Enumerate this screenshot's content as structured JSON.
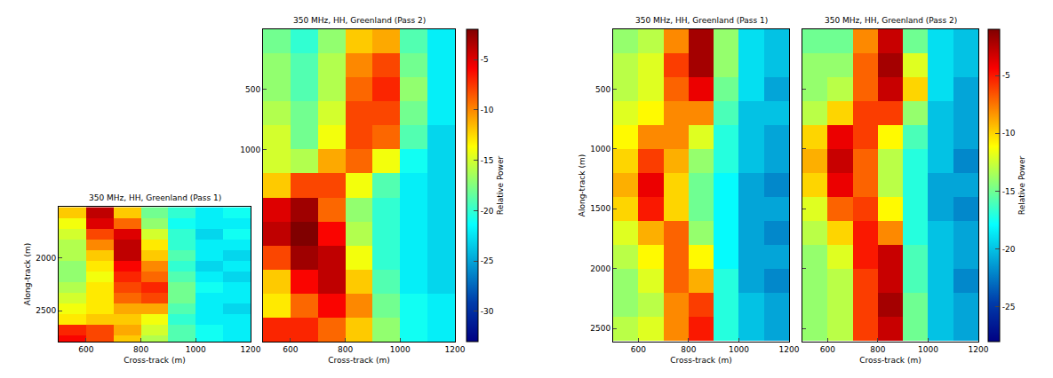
{
  "chart_data": [
    {
      "type": "heatmap",
      "colorbar": {
        "title": "Relative Power",
        "range": [
          -33,
          -2
        ],
        "ticks": [
          -5,
          -10,
          -15,
          -20,
          -25,
          -30
        ]
      },
      "panels": [
        {
          "title": "350 MHz, HH, Greenland (Pass 1)",
          "x_label": "Cross-track (m)",
          "y_label": "Along-track (m)",
          "xlim": [
            500,
            1200
          ],
          "ylim": [
            2790,
            1520
          ],
          "xticks": [
            600,
            800,
            1000,
            1200
          ],
          "yticks": [
            2000,
            2500
          ],
          "x": [
            550,
            650,
            750,
            850,
            950,
            1050,
            1150
          ],
          "y": [
            1575,
            1675,
            1775,
            1875,
            1975,
            2075,
            2175,
            2275,
            2375,
            2475,
            2575,
            2675,
            2775
          ],
          "z": [
            [
              -12,
              -4,
              -12,
              -18,
              -20,
              -22,
              -21
            ],
            [
              -14,
              -5,
              -9,
              -17,
              -21,
              -22,
              -22
            ],
            [
              -15,
              -8,
              -5,
              -15,
              -20,
              -23,
              -21
            ],
            [
              -16,
              -10,
              -4,
              -13,
              -20,
              -22,
              -22
            ],
            [
              -16,
              -12,
              -4,
              -12,
              -19,
              -22,
              -23
            ],
            [
              -17,
              -13,
              -6,
              -10,
              -20,
              -23,
              -22
            ],
            [
              -17,
              -14,
              -7,
              -9,
              -19,
              -22,
              -23
            ],
            [
              -16,
              -13,
              -8,
              -7,
              -18,
              -21,
              -22
            ],
            [
              -15,
              -13,
              -9,
              -8,
              -18,
              -22,
              -22
            ],
            [
              -14,
              -13,
              -11,
              -11,
              -19,
              -22,
              -23
            ],
            [
              -13,
              -12,
              -12,
              -14,
              -20,
              -22,
              -22
            ],
            [
              -7,
              -8,
              -11,
              -15,
              -19,
              -21,
              -22
            ],
            [
              -6,
              -8,
              -12,
              -16,
              -19,
              -21,
              -22
            ]
          ]
        },
        {
          "title": "350 MHz, HH, Greenland (Pass 2)",
          "x_label": "Cross-track (m)",
          "xlim": [
            500,
            1200
          ],
          "ylim": [
            2600,
            0
          ],
          "xticks": [
            600,
            800,
            1000,
            1200
          ],
          "yticks": [
            500,
            1000
          ],
          "x": [
            550,
            650,
            750,
            850,
            950,
            1050,
            1150
          ],
          "y": [
            100,
            300,
            500,
            700,
            900,
            1100,
            1300,
            1500,
            1700,
            1900,
            2100,
            2300,
            2500
          ],
          "z": [
            [
              -18,
              -20,
              -17,
              -12,
              -11,
              -19,
              -22
            ],
            [
              -17,
              -19,
              -16,
              -10,
              -8,
              -18,
              -22
            ],
            [
              -17,
              -19,
              -16,
              -9,
              -7,
              -17,
              -22
            ],
            [
              -16,
              -18,
              -15,
              -8,
              -8,
              -18,
              -22
            ],
            [
              -15,
              -18,
              -14,
              -8,
              -9,
              -19,
              -23
            ],
            [
              -15,
              -16,
              -11,
              -9,
              -14,
              -21,
              -23
            ],
            [
              -12,
              -8,
              -8,
              -14,
              -19,
              -22,
              -23
            ],
            [
              -5,
              -3,
              -9,
              -17,
              -20,
              -22,
              -23
            ],
            [
              -4,
              -2,
              -6,
              -16,
              -20,
              -22,
              -23
            ],
            [
              -8,
              -3,
              -4,
              -14,
              -20,
              -22,
              -23
            ],
            [
              -12,
              -6,
              -4,
              -12,
              -19,
              -22,
              -23
            ],
            [
              -13,
              -9,
              -6,
              -10,
              -18,
              -21,
              -22
            ],
            [
              -7,
              -7,
              -9,
              -12,
              -17,
              -21,
              -22
            ]
          ]
        }
      ]
    },
    {
      "type": "heatmap",
      "colorbar": {
        "title": "Relative Power",
        "range": [
          -28,
          -1
        ],
        "ticks": [
          -5,
          -10,
          -15,
          -20,
          -25
        ]
      },
      "panels": [
        {
          "title": "350 MHz, HH, Greenland (Pass 1)",
          "x_label": "Cross-track (m)",
          "y_label": "Along-track (m)",
          "xlim": [
            500,
            1200
          ],
          "ylim": [
            2610,
            0
          ],
          "xticks": [
            600,
            800,
            1000,
            1200
          ],
          "yticks": [
            500,
            1000,
            1500,
            2000,
            2500
          ],
          "x": [
            550,
            650,
            750,
            850,
            950,
            1050,
            1150
          ],
          "y": [
            100,
            300,
            500,
            700,
            900,
            1100,
            1300,
            1500,
            1700,
            1900,
            2100,
            2300,
            2500
          ],
          "z": [
            [
              -14,
              -13,
              -8,
              -2,
              -14,
              -19,
              -20
            ],
            [
              -13,
              -12,
              -6,
              -2,
              -14,
              -19,
              -20
            ],
            [
              -13,
              -12,
              -7,
              -4,
              -15,
              -19,
              -21
            ],
            [
              -12,
              -11,
              -8,
              -8,
              -16,
              -20,
              -20
            ],
            [
              -11,
              -8,
              -8,
              -12,
              -17,
              -20,
              -21
            ],
            [
              -10,
              -6,
              -9,
              -14,
              -17,
              -20,
              -21
            ],
            [
              -9,
              -4,
              -10,
              -15,
              -18,
              -21,
              -22
            ],
            [
              -10,
              -5,
              -10,
              -15,
              -18,
              -21,
              -21
            ],
            [
              -12,
              -9,
              -7,
              -14,
              -18,
              -21,
              -22
            ],
            [
              -13,
              -11,
              -7,
              -11,
              -18,
              -21,
              -21
            ],
            [
              -14,
              -12,
              -7,
              -9,
              -17,
              -21,
              -22
            ],
            [
              -14,
              -13,
              -8,
              -6,
              -17,
              -20,
              -21
            ],
            [
              -13,
              -12,
              -8,
              -5,
              -17,
              -20,
              -21
            ]
          ]
        },
        {
          "title": "350 MHz, HH, Greenland (Pass 2)",
          "x_label": "Cross-track (m)",
          "tick_labels": "x",
          "xlim": [
            500,
            1200
          ],
          "ylim": [
            2610,
            0
          ],
          "xticks": [
            600,
            800,
            1000,
            1200
          ],
          "yticks": [
            500,
            1000,
            1500,
            2000,
            2500
          ],
          "x": [
            550,
            650,
            750,
            850,
            950,
            1050,
            1150
          ],
          "y": [
            100,
            300,
            500,
            700,
            900,
            1100,
            1300,
            1500,
            1700,
            1900,
            2100,
            2300,
            2500
          ],
          "z": [
            [
              -15,
              -15,
              -8,
              -3,
              -15,
              -19,
              -20
            ],
            [
              -14,
              -14,
              -7,
              -2,
              -12,
              -19,
              -20
            ],
            [
              -14,
              -13,
              -7,
              -3,
              -10,
              -19,
              -21
            ],
            [
              -13,
              -10,
              -6,
              -6,
              -14,
              -20,
              -21
            ],
            [
              -10,
              -4,
              -6,
              -11,
              -16,
              -20,
              -21
            ],
            [
              -9,
              -3,
              -7,
              -13,
              -17,
              -20,
              -22
            ],
            [
              -10,
              -4,
              -7,
              -13,
              -17,
              -21,
              -21
            ],
            [
              -12,
              -7,
              -6,
              -11,
              -17,
              -21,
              -22
            ],
            [
              -13,
              -10,
              -5,
              -8,
              -17,
              -20,
              -21
            ],
            [
              -14,
              -12,
              -5,
              -3,
              -16,
              -20,
              -21
            ],
            [
              -14,
              -13,
              -6,
              -3,
              -16,
              -20,
              -22
            ],
            [
              -14,
              -13,
              -6,
              -2,
              -15,
              -20,
              -21
            ],
            [
              -14,
              -13,
              -6,
              -3,
              -15,
              -20,
              -21
            ]
          ]
        }
      ]
    }
  ]
}
